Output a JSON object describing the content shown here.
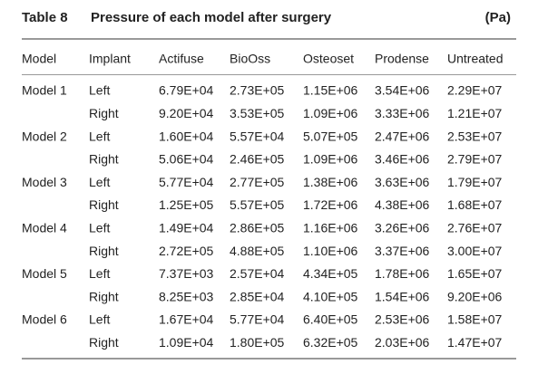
{
  "header": {
    "label": "Table 8",
    "title": "Pressure of each model after surgery",
    "unit": "(Pa)"
  },
  "table": {
    "columns": [
      "Model",
      "Implant",
      "Actifuse",
      "BioOss",
      "Osteoset",
      "Prodense",
      "Untreated"
    ],
    "groups": [
      {
        "model": "Model 1",
        "rows": [
          [
            "Left",
            "6.79E+04",
            "2.73E+05",
            "1.15E+06",
            "3.54E+06",
            "2.29E+07"
          ],
          [
            "Right",
            "9.20E+04",
            "3.53E+05",
            "1.09E+06",
            "3.33E+06",
            "1.21E+07"
          ]
        ]
      },
      {
        "model": "Model 2",
        "rows": [
          [
            "Left",
            "1.60E+04",
            "5.57E+04",
            "5.07E+05",
            "2.47E+06",
            "2.53E+07"
          ],
          [
            "Right",
            "5.06E+04",
            "2.46E+05",
            "1.09E+06",
            "3.46E+06",
            "2.79E+07"
          ]
        ]
      },
      {
        "model": "Model 3",
        "rows": [
          [
            "Left",
            "5.77E+04",
            "2.77E+05",
            "1.38E+06",
            "3.63E+06",
            "1.79E+07"
          ],
          [
            "Right",
            "1.25E+05",
            "5.57E+05",
            "1.72E+06",
            "4.38E+06",
            "1.68E+07"
          ]
        ]
      },
      {
        "model": "Model 4",
        "rows": [
          [
            "Left",
            "1.49E+04",
            "2.86E+05",
            "1.16E+06",
            "3.26E+06",
            "2.76E+07"
          ],
          [
            "Right",
            "2.72E+05",
            "4.88E+05",
            "1.10E+06",
            "3.37E+06",
            "3.00E+07"
          ]
        ]
      },
      {
        "model": "Model 5",
        "rows": [
          [
            "Left",
            "7.37E+03",
            "2.57E+04",
            "4.34E+05",
            "1.78E+06",
            "1.65E+07"
          ],
          [
            "Right",
            "8.25E+03",
            "2.85E+04",
            "4.10E+05",
            "1.54E+06",
            "9.20E+06"
          ]
        ]
      },
      {
        "model": "Model 6",
        "rows": [
          [
            "Left",
            "1.67E+04",
            "5.77E+04",
            "6.40E+05",
            "2.53E+06",
            "1.58E+07"
          ],
          [
            "Right",
            "1.09E+04",
            "1.80E+05",
            "6.32E+05",
            "2.03E+06",
            "1.47E+07"
          ]
        ]
      }
    ]
  }
}
